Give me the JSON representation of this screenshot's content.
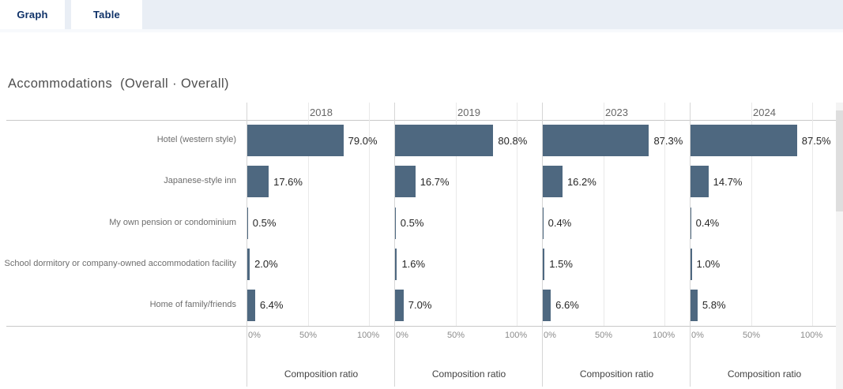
{
  "tabs": [
    {
      "label": "Graph",
      "active": true
    },
    {
      "label": "Table",
      "active": false
    }
  ],
  "title": "Accommodations  (Overall · Overall)",
  "chart_data": {
    "type": "bar",
    "orientation": "horizontal",
    "title": "Accommodations  (Overall · Overall)",
    "categories": [
      "Hotel (western style)",
      "Japanese-style inn",
      "My own pension or condominium",
      "School dormitory or company-owned accommodation facility",
      "Home of family/friends"
    ],
    "series": [
      {
        "name": "2018",
        "values": [
          79.0,
          17.6,
          0.5,
          2.0,
          6.4
        ]
      },
      {
        "name": "2019",
        "values": [
          80.8,
          16.7,
          0.5,
          1.6,
          7.0
        ]
      },
      {
        "name": "2023",
        "values": [
          87.3,
          16.2,
          0.4,
          1.5,
          6.6
        ]
      },
      {
        "name": "2024",
        "values": [
          87.5,
          14.7,
          0.4,
          1.0,
          5.8
        ]
      }
    ],
    "value_label_suffix": "%",
    "xlabel": "Composition ratio",
    "x_ticks": [
      "0%",
      "50%",
      "100%"
    ],
    "xlim": [
      0,
      100
    ],
    "grid": true,
    "legend": "none",
    "bar_color": "#4e6880"
  },
  "scrollbar": {
    "visible": true
  },
  "colors": {
    "bar": "#4e6880",
    "tab_text": "#0f3268",
    "tab_strip_bg": "#e9eef5",
    "title_text": "#4e4e4e",
    "panel_line": "#d6d6d6",
    "grid_line": "#e9e9e9",
    "axis_line": "#c9c9c9",
    "value_text": "#262626",
    "category_text": "#6d6d6d",
    "tick_text": "#8c8c8c",
    "axis_title_text": "#424242"
  }
}
